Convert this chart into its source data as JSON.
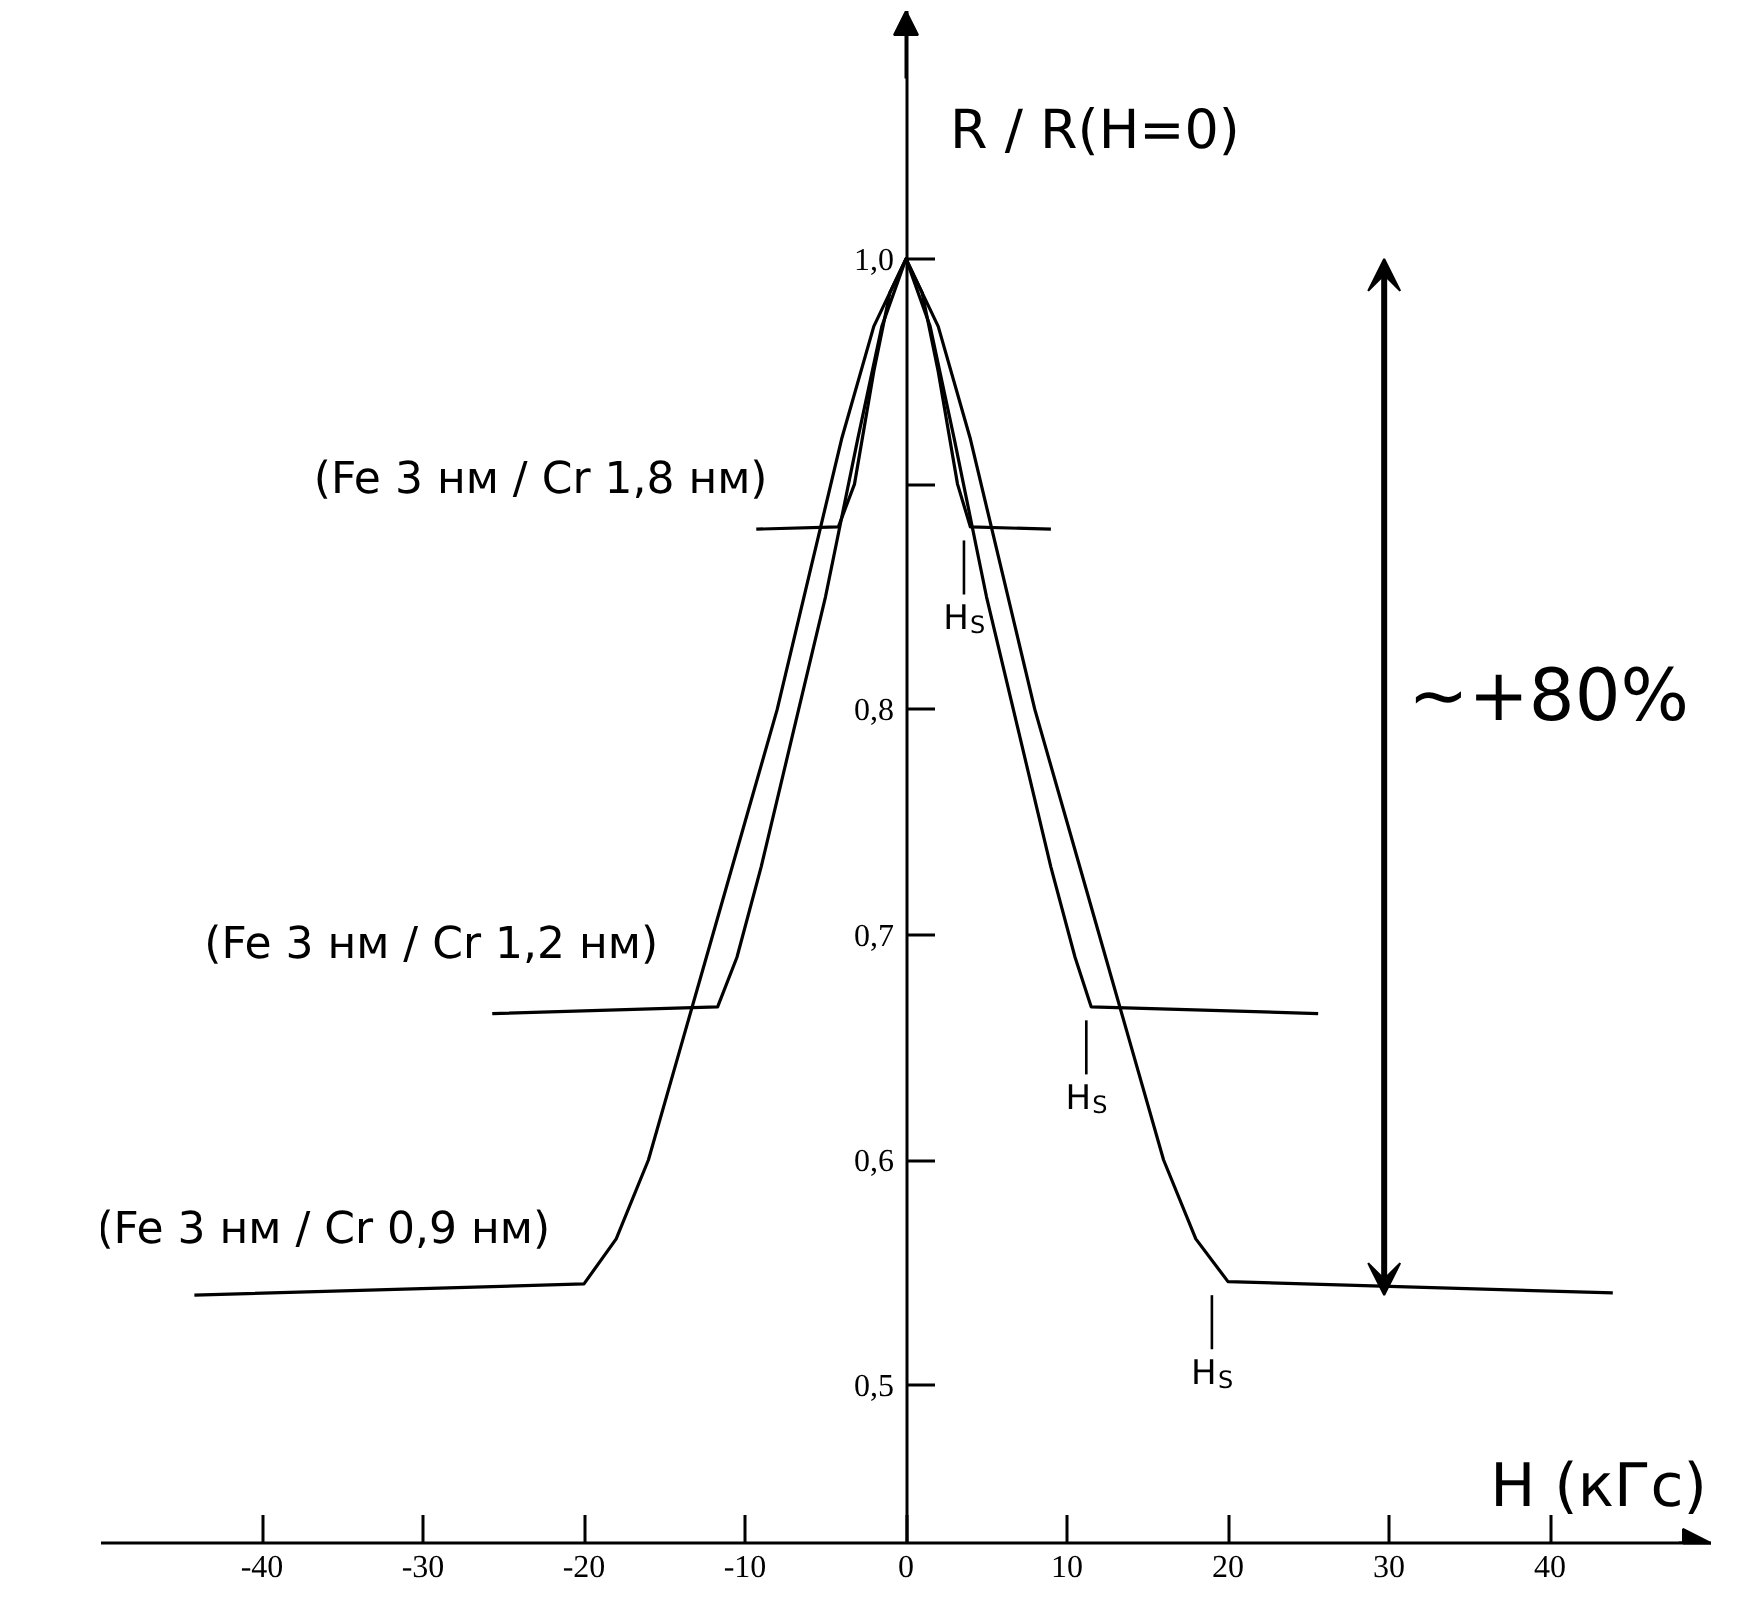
{
  "chart_data": {
    "type": "line",
    "ylabel": "R / R(H=0)",
    "xlabel": "H (кГс)",
    "xlim": [
      -50,
      50
    ],
    "ylim": [
      0.43,
      1.11
    ],
    "xticks": [
      -40,
      -30,
      -20,
      -10,
      0,
      10,
      20,
      30,
      40
    ],
    "yticks": [
      {
        "value": 0.5,
        "label": "0,5"
      },
      {
        "value": 0.6,
        "label": "0,6"
      },
      {
        "value": 0.7,
        "label": "0,7"
      },
      {
        "value": 0.8,
        "label": "0,8"
      },
      {
        "value": 0.9,
        "label": null
      },
      {
        "value": 1.0,
        "label": "1,0"
      }
    ],
    "series": [
      {
        "name": "(Fe 3 нм / Cr 1,8 нм)",
        "color": "#000000",
        "x": [
          -9.3,
          -4.2,
          -3.2,
          -2,
          -1,
          0,
          1,
          2,
          3.2,
          4,
          9
        ],
        "values": [
          0.88,
          0.881,
          0.9,
          0.95,
          0.985,
          1.0,
          0.985,
          0.95,
          0.9,
          0.881,
          0.88
        ]
      },
      {
        "name": "(Fe 3 нм / Cr 1,2 нм)",
        "color": "#000000",
        "x": [
          -25.7,
          -11.7,
          -10.5,
          -9,
          -7,
          -5,
          -3,
          -1.5,
          0,
          1.5,
          3,
          5,
          7,
          9,
          10.5,
          11.5,
          25.6
        ],
        "values": [
          0.665,
          0.668,
          0.69,
          0.73,
          0.79,
          0.85,
          0.92,
          0.97,
          1.0,
          0.97,
          0.92,
          0.85,
          0.79,
          0.73,
          0.69,
          0.668,
          0.665
        ]
      },
      {
        "name": "(Fe 3 нм / Cr 0,9 нм)",
        "color": "#000000",
        "x": [
          -44.2,
          -20,
          -18,
          -16,
          -14,
          -12,
          -10,
          -8,
          -6,
          -4,
          -2,
          0,
          2,
          4,
          6,
          8,
          10,
          12,
          14,
          16,
          18,
          20,
          43.9
        ],
        "values": [
          0.54,
          0.545,
          0.565,
          0.6,
          0.65,
          0.7,
          0.75,
          0.8,
          0.86,
          0.92,
          0.97,
          1.0,
          0.97,
          0.92,
          0.86,
          0.8,
          0.75,
          0.7,
          0.65,
          0.6,
          0.565,
          0.546,
          0.541
        ]
      }
    ],
    "annotations": [
      "H$_{S}$",
      "H$_{S}$",
      "H$_{S}$",
      "~+80%"
    ],
    "grid": false,
    "marker": "none",
    "line_style": "solid"
  }
}
